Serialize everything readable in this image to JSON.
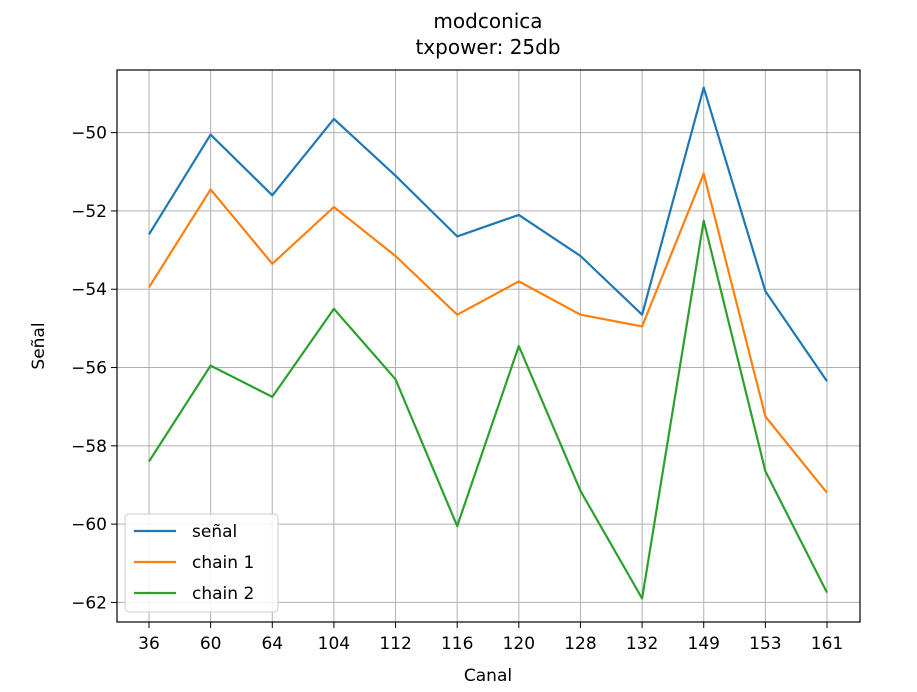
{
  "chart_data": {
    "type": "line",
    "title": "modconica",
    "subtitle": "txpower: 25db",
    "xlabel": "Canal",
    "ylabel": "Señal",
    "categories": [
      "36",
      "60",
      "64",
      "104",
      "112",
      "116",
      "120",
      "128",
      "132",
      "149",
      "153",
      "161"
    ],
    "ylim": [
      -62.5,
      -48.4
    ],
    "yticks": [
      -50,
      -52,
      -54,
      -56,
      -58,
      -60,
      -62
    ],
    "ytick_labels": [
      "−50",
      "−52",
      "−54",
      "−56",
      "−58",
      "−60",
      "−62"
    ],
    "grid": true,
    "legend_position": "lower-left",
    "series": [
      {
        "name": "señal",
        "color": "#1f77b4",
        "values": [
          -52.6,
          -50.05,
          -51.6,
          -49.65,
          -51.1,
          -52.65,
          -52.1,
          -53.15,
          -54.65,
          -48.85,
          -54.05,
          -56.35
        ]
      },
      {
        "name": "chain 1",
        "color": "#ff7f0e",
        "values": [
          -53.95,
          -51.45,
          -53.35,
          -51.9,
          -53.15,
          -54.65,
          -53.8,
          -54.65,
          -54.95,
          -51.05,
          -57.25,
          -59.2
        ]
      },
      {
        "name": "chain 2",
        "color": "#2ca02c",
        "values": [
          -58.4,
          -55.95,
          -56.75,
          -54.5,
          -56.3,
          -60.05,
          -55.45,
          -59.15,
          -61.9,
          -52.25,
          -58.65,
          -61.75
        ]
      }
    ]
  }
}
